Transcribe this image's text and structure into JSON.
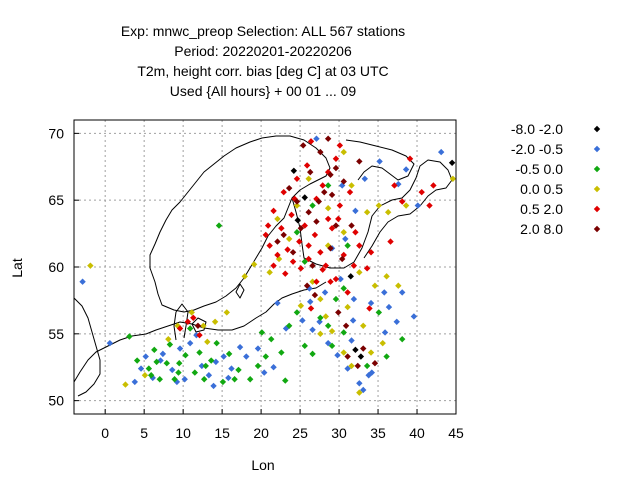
{
  "chart_data": {
    "type": "scatter",
    "title_lines": [
      "Exp: mnwc_preop   Selection: ALL    567 stations",
      "Period: 20220201-20220206",
      "T2m, height corr. bias [deg C] at  03 UTC",
      "Used {All hours} + 00 01 ... 09"
    ],
    "xlabel": "Lon",
    "ylabel": "Lat",
    "xlim": [
      -4,
      45
    ],
    "ylim": [
      49,
      71
    ],
    "xticks": [
      0,
      5,
      10,
      15,
      20,
      25,
      30,
      35,
      40,
      45
    ],
    "yticks": [
      50,
      55,
      60,
      65,
      70
    ],
    "grid": true,
    "legend_position": "right",
    "legend": [
      {
        "label": "-8.0 -2.0",
        "color": "#000000"
      },
      {
        "label": "-2.0 -0.5",
        "color": "#3a6fd8"
      },
      {
        "label": "-0.5 0.0",
        "color": "#11a811"
      },
      {
        "label": "0.0 0.5",
        "color": "#c9be00"
      },
      {
        "label": "0.5 2.0",
        "color": "#e00000"
      },
      {
        "label": "2.0 8.0",
        "color": "#7a0000"
      }
    ],
    "series": [
      {
        "class": 0,
        "points": [
          [
            44.5,
            67.8
          ],
          [
            24.7,
            63.5
          ],
          [
            31.5,
            59.3
          ],
          [
            32.1,
            53.8
          ],
          [
            32.8,
            53.3
          ],
          [
            25.6,
            65.2
          ],
          [
            24.2,
            67.2
          ]
        ]
      },
      {
        "class": 1,
        "points": [
          [
            -2.9,
            58.9
          ],
          [
            0.6,
            54.3
          ],
          [
            3.8,
            51.4
          ],
          [
            4.6,
            52.4
          ],
          [
            5.2,
            53.3
          ],
          [
            6.1,
            51.7
          ],
          [
            7.4,
            53.5
          ],
          [
            8.6,
            52.3
          ],
          [
            9.6,
            53.9
          ],
          [
            10.9,
            54.3
          ],
          [
            11.7,
            54.9
          ],
          [
            12.4,
            52.6
          ],
          [
            13.3,
            51.9
          ],
          [
            14.2,
            52.9
          ],
          [
            15.2,
            53.3
          ],
          [
            16.2,
            52.4
          ],
          [
            18.1,
            53.3
          ],
          [
            19.6,
            53.9
          ],
          [
            21.6,
            52.5
          ],
          [
            23.2,
            55.4
          ],
          [
            25.3,
            56.0
          ],
          [
            26.3,
            57.4
          ],
          [
            27.5,
            55.9
          ],
          [
            28.6,
            54.3
          ],
          [
            29.8,
            53.4
          ],
          [
            31.1,
            52.4
          ],
          [
            32.6,
            51.3
          ],
          [
            33.8,
            51.9
          ],
          [
            31.9,
            57.6
          ],
          [
            34.1,
            57.3
          ],
          [
            35.9,
            55.1
          ],
          [
            37.4,
            55.9
          ],
          [
            36.4,
            57.0
          ],
          [
            38.1,
            58.1
          ],
          [
            39.6,
            56.3
          ],
          [
            29.1,
            61.4
          ],
          [
            30.8,
            62.1
          ],
          [
            32.1,
            64.2
          ],
          [
            33.3,
            66.6
          ],
          [
            35.2,
            67.9
          ],
          [
            37.6,
            66.2
          ],
          [
            40.1,
            64.6
          ],
          [
            43.1,
            68.6
          ],
          [
            38.6,
            67.3
          ],
          [
            30.4,
            66.1
          ],
          [
            27.1,
            69.6
          ],
          [
            26.2,
            58.4
          ],
          [
            28.2,
            58.1
          ],
          [
            30.2,
            59.1
          ],
          [
            31.8,
            56.0
          ],
          [
            34.2,
            52.1
          ],
          [
            10.2,
            51.6
          ],
          [
            9.2,
            51.4
          ],
          [
            7.1,
            53.0
          ],
          [
            15.8,
            51.7
          ],
          [
            13.9,
            51.1
          ],
          [
            20.4,
            52.1
          ],
          [
            17.3,
            54.0
          ],
          [
            31.6,
            54.5
          ],
          [
            35.8,
            58.1
          ],
          [
            33.1,
            50.8
          ],
          [
            26.6,
            55.3
          ],
          [
            22.1,
            57.3
          ]
        ]
      },
      {
        "class": 2,
        "points": [
          [
            3.1,
            54.8
          ],
          [
            4.1,
            53.0
          ],
          [
            5.6,
            52.4
          ],
          [
            6.3,
            53.8
          ],
          [
            7.0,
            51.6
          ],
          [
            7.9,
            52.8
          ],
          [
            8.3,
            54.2
          ],
          [
            8.9,
            51.6
          ],
          [
            9.5,
            52.8
          ],
          [
            10.3,
            53.4
          ],
          [
            10.9,
            55.4
          ],
          [
            11.5,
            52.1
          ],
          [
            12.1,
            53.6
          ],
          [
            12.7,
            51.6
          ],
          [
            13.6,
            53.0
          ],
          [
            14.3,
            54.3
          ],
          [
            15.1,
            51.4
          ],
          [
            15.9,
            53.5
          ],
          [
            17.1,
            52.3
          ],
          [
            18.6,
            51.6
          ],
          [
            19.6,
            52.6
          ],
          [
            20.6,
            53.3
          ],
          [
            21.3,
            54.6
          ],
          [
            22.6,
            53.6
          ],
          [
            23.6,
            55.6
          ],
          [
            24.6,
            56.6
          ],
          [
            25.6,
            54.1
          ],
          [
            26.6,
            53.5
          ],
          [
            27.6,
            56.2
          ],
          [
            28.6,
            55.6
          ],
          [
            29.6,
            57.6
          ],
          [
            30.6,
            58.4
          ],
          [
            31.1,
            61.6
          ],
          [
            25.6,
            60.4
          ],
          [
            24.6,
            62.6
          ],
          [
            26.6,
            64.6
          ],
          [
            28.6,
            66.1
          ],
          [
            33.6,
            52.6
          ],
          [
            36.1,
            53.3
          ],
          [
            38.1,
            54.6
          ],
          [
            35.1,
            56.6
          ],
          [
            14.6,
            63.1
          ],
          [
            9.4,
            52.1
          ],
          [
            6.6,
            52.9
          ],
          [
            5.9,
            51.9
          ],
          [
            12.9,
            52.6
          ],
          [
            16.6,
            51.6
          ],
          [
            20.1,
            55.1
          ],
          [
            23.1,
            51.5
          ],
          [
            29.1,
            54.1
          ],
          [
            30.6,
            55.1
          ]
        ]
      },
      {
        "class": 3,
        "points": [
          [
            -1.9,
            60.1
          ],
          [
            2.6,
            51.2
          ],
          [
            5.1,
            51.9
          ],
          [
            8.1,
            54.6
          ],
          [
            9.3,
            55.6
          ],
          [
            11.1,
            56.6
          ],
          [
            12.6,
            55.6
          ],
          [
            14.1,
            55.9
          ],
          [
            15.6,
            56.6
          ],
          [
            17.9,
            59.3
          ],
          [
            19.1,
            60.2
          ],
          [
            21.1,
            59.6
          ],
          [
            22.3,
            60.6
          ],
          [
            25.1,
            57.1
          ],
          [
            26.6,
            58.9
          ],
          [
            27.6,
            57.6
          ],
          [
            28.3,
            56.3
          ],
          [
            29.1,
            55.2
          ],
          [
            30.6,
            53.6
          ],
          [
            31.6,
            52.6
          ],
          [
            32.6,
            50.6
          ],
          [
            34.1,
            53.6
          ],
          [
            35.6,
            54.3
          ],
          [
            33.1,
            55.6
          ],
          [
            34.6,
            58.6
          ],
          [
            36.1,
            59.3
          ],
          [
            35.1,
            64.6
          ],
          [
            36.3,
            64.1
          ],
          [
            38.6,
            64.6
          ],
          [
            44.6,
            66.6
          ],
          [
            24.6,
            64.6
          ],
          [
            22.1,
            63.6
          ],
          [
            26.1,
            66.6
          ],
          [
            30.6,
            68.6
          ],
          [
            33.6,
            64.1
          ],
          [
            31.6,
            66.1
          ],
          [
            30.6,
            62.6
          ],
          [
            28.6,
            61.6
          ],
          [
            32.6,
            59.6
          ],
          [
            37.6,
            58.6
          ],
          [
            28.6,
            64.4
          ],
          [
            23.6,
            62.1
          ],
          [
            13.1,
            54.4
          ],
          [
            27.6,
            55.0
          ],
          [
            31.1,
            57.0
          ]
        ]
      },
      {
        "class": 4,
        "points": [
          [
            9.6,
            55.4
          ],
          [
            10.6,
            55.9
          ],
          [
            11.3,
            56.2
          ],
          [
            12.1,
            54.9
          ],
          [
            21.1,
            61.6
          ],
          [
            20.9,
            63.1
          ],
          [
            21.6,
            64.2
          ],
          [
            22.6,
            62.9
          ],
          [
            23.4,
            61.3
          ],
          [
            24.1,
            60.4
          ],
          [
            24.9,
            61.9
          ],
          [
            25.6,
            63.1
          ],
          [
            26.1,
            60.6
          ],
          [
            26.9,
            62.4
          ],
          [
            27.6,
            61.1
          ],
          [
            28.3,
            60.1
          ],
          [
            29.1,
            62.9
          ],
          [
            29.9,
            63.6
          ],
          [
            30.6,
            60.9
          ],
          [
            27.1,
            65.1
          ],
          [
            27.9,
            66.1
          ],
          [
            28.6,
            67.1
          ],
          [
            29.6,
            68.1
          ],
          [
            30.1,
            69.1
          ],
          [
            31.9,
            60.1
          ],
          [
            32.6,
            61.6
          ],
          [
            33.6,
            59.9
          ],
          [
            34.1,
            61.1
          ],
          [
            36.6,
            61.9
          ],
          [
            38.1,
            64.9
          ],
          [
            40.6,
            65.6
          ],
          [
            41.6,
            64.6
          ],
          [
            42.1,
            66.1
          ],
          [
            37.1,
            66.1
          ],
          [
            39.1,
            68.1
          ],
          [
            29.6,
            59.1
          ],
          [
            22.9,
            65.6
          ],
          [
            24.6,
            66.6
          ],
          [
            25.9,
            67.6
          ],
          [
            26.4,
            69.4
          ],
          [
            21.6,
            60.1
          ],
          [
            22.1,
            60.9
          ],
          [
            20.6,
            62.4
          ],
          [
            23.9,
            63.9
          ],
          [
            25.1,
            59.9
          ],
          [
            27.9,
            59.8
          ],
          [
            30.1,
            64.6
          ],
          [
            31.4,
            65.6
          ],
          [
            28.9,
            58.9
          ],
          [
            31.1,
            58.1
          ],
          [
            33.9,
            56.9
          ],
          [
            26.4,
            56.9
          ],
          [
            27.1,
            58.9
          ],
          [
            26.1,
            61.6
          ],
          [
            28.6,
            63.6
          ],
          [
            23.1,
            59.5
          ],
          [
            32.1,
            62.6
          ],
          [
            24.3,
            65.1
          ]
        ]
      },
      {
        "class": 5,
        "points": [
          [
            23.6,
            65.9
          ],
          [
            24.6,
            64.9
          ],
          [
            26.1,
            64.1
          ],
          [
            27.1,
            63.4
          ],
          [
            28.1,
            65.6
          ],
          [
            28.9,
            66.9
          ],
          [
            27.6,
            68.6
          ],
          [
            28.6,
            69.6
          ],
          [
            29.6,
            67.4
          ],
          [
            30.6,
            66.4
          ],
          [
            31.6,
            63.1
          ],
          [
            26.6,
            60.1
          ],
          [
            25.1,
            62.9
          ],
          [
            22.9,
            62.4
          ],
          [
            24.1,
            61.1
          ],
          [
            25.9,
            58.6
          ],
          [
            26.9,
            57.9
          ],
          [
            29.9,
            56.6
          ],
          [
            30.9,
            55.6
          ],
          [
            31.1,
            53.3
          ],
          [
            32.4,
            52.6
          ],
          [
            33.1,
            53.9
          ],
          [
            34.6,
            52.8
          ],
          [
            11.9,
            55.6
          ],
          [
            32.6,
            67.9
          ],
          [
            25.4,
            69.1
          ],
          [
            29.1,
            65.4
          ],
          [
            22.1,
            61.9
          ],
          [
            30.4,
            60.6
          ],
          [
            27.4,
            64.9
          ],
          [
            26.3,
            67.1
          ],
          [
            28.9,
            61.4
          ],
          [
            29.6,
            63.1
          ]
        ]
      }
    ]
  }
}
